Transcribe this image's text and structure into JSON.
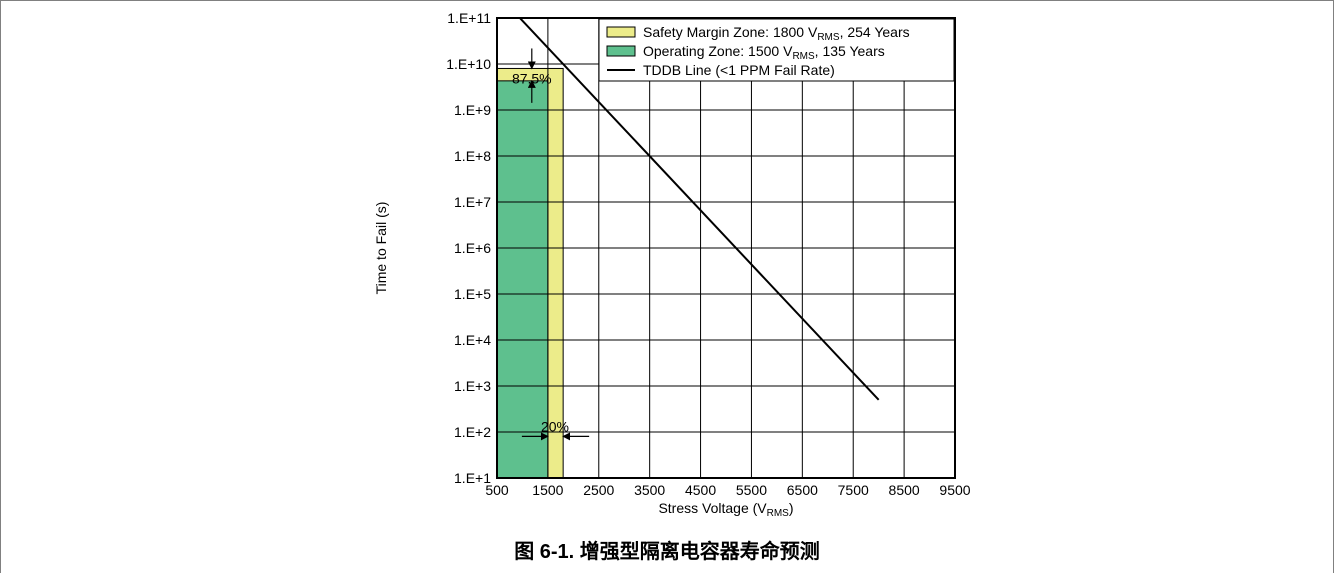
{
  "caption": "图 6-1. 增强型隔离电容器寿命预测",
  "chart_data": {
    "type": "line",
    "xlabel": "Stress Voltage (V",
    "xlabel_sub": "RMS",
    "xlabel_end": ")",
    "ylabel": "Time to Fail (s)",
    "xlim": [
      500,
      9500
    ],
    "x_ticks": [
      500,
      1500,
      2500,
      3500,
      4500,
      5500,
      6500,
      7500,
      8500,
      9500
    ],
    "x_tick_labels": [
      "500",
      "1500",
      "2500",
      "3500",
      "4500",
      "5500",
      "6500",
      "7500",
      "8500",
      "9500"
    ],
    "y_scale": "log",
    "ylim": [
      10,
      100000000000
    ],
    "y_ticks": [
      10,
      100,
      1000,
      10000,
      100000,
      1000000,
      10000000,
      100000000,
      1000000000,
      10000000000,
      100000000000
    ],
    "y_tick_labels": [
      "1.E+1",
      "1.E+2",
      "1.E+3",
      "1.E+4",
      "1.E+5",
      "1.E+6",
      "1.E+7",
      "1.E+8",
      "1.E+9",
      "1.E+10",
      "1.E+11"
    ],
    "grid": true,
    "legend_position": "top-right",
    "zones": [
      {
        "name_pre": "Safety Margin Zone: 1800 V",
        "name_sub": "RMS",
        "name_post": ", 254 Years",
        "x": [
          500,
          1800
        ],
        "y": [
          10,
          8000000000
        ],
        "color": "#ecec8a"
      },
      {
        "name_pre": "Operating Zone: 1500 V",
        "name_sub": "RMS",
        "name_post": ", 135 Years",
        "x": [
          500,
          1500
        ],
        "y": [
          10,
          4300000000
        ],
        "color": "#5ec08e"
      }
    ],
    "series": [
      {
        "name": "TDDB Line (<1 PPM Fail Rate)",
        "color": "#000000",
        "x": [
          800,
          8000
        ],
        "y": [
          150000000000,
          500
        ]
      }
    ],
    "annotations": [
      {
        "text": "87.5%",
        "x": 1400,
        "y": 7000000000
      },
      {
        "text": "20%",
        "x": 1640,
        "y": 170
      }
    ]
  }
}
